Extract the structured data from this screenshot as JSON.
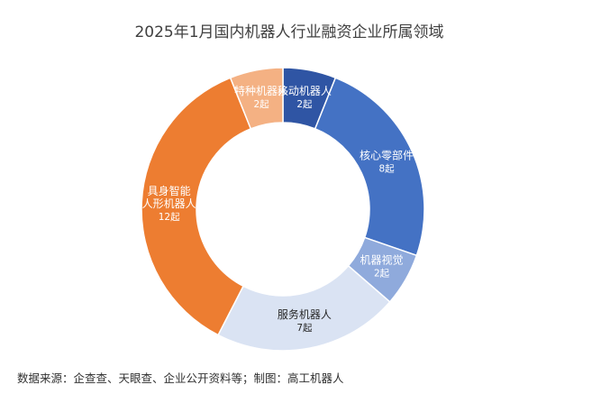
{
  "chart_data": {
    "type": "pie",
    "variant": "donut",
    "title": "2025年1月国内机器人行业融资企业所属领域",
    "source": "数据来源：企查查、天眼查、企业公开资料等；制图：高工机器人",
    "unit": "起",
    "slices": [
      {
        "label": "移动机器人",
        "value": 2,
        "value_text": "2起",
        "color": "#2F55A4",
        "text_color": "#ffffff"
      },
      {
        "label": "核心零部件",
        "value": 8,
        "value_text": "8起",
        "color": "#4472C4",
        "text_color": "#ffffff"
      },
      {
        "label": "机器视觉",
        "value": 2,
        "value_text": "2起",
        "color": "#8FAADC",
        "text_color": "#ffffff"
      },
      {
        "label": "服务机器人",
        "value": 7,
        "value_text": "7起",
        "color": "#DAE3F3",
        "text_color": "#262626"
      },
      {
        "label": "具身智能人形机器人",
        "label_lines": [
          "具身智能",
          "人形机器人"
        ],
        "value": 12,
        "value_text": "12起",
        "color": "#ED7D31",
        "text_color": "#ffffff"
      },
      {
        "label": "特种机器人",
        "value": 2,
        "value_text": "2起",
        "color": "#F4B183",
        "text_color": "#ffffff"
      }
    ]
  }
}
